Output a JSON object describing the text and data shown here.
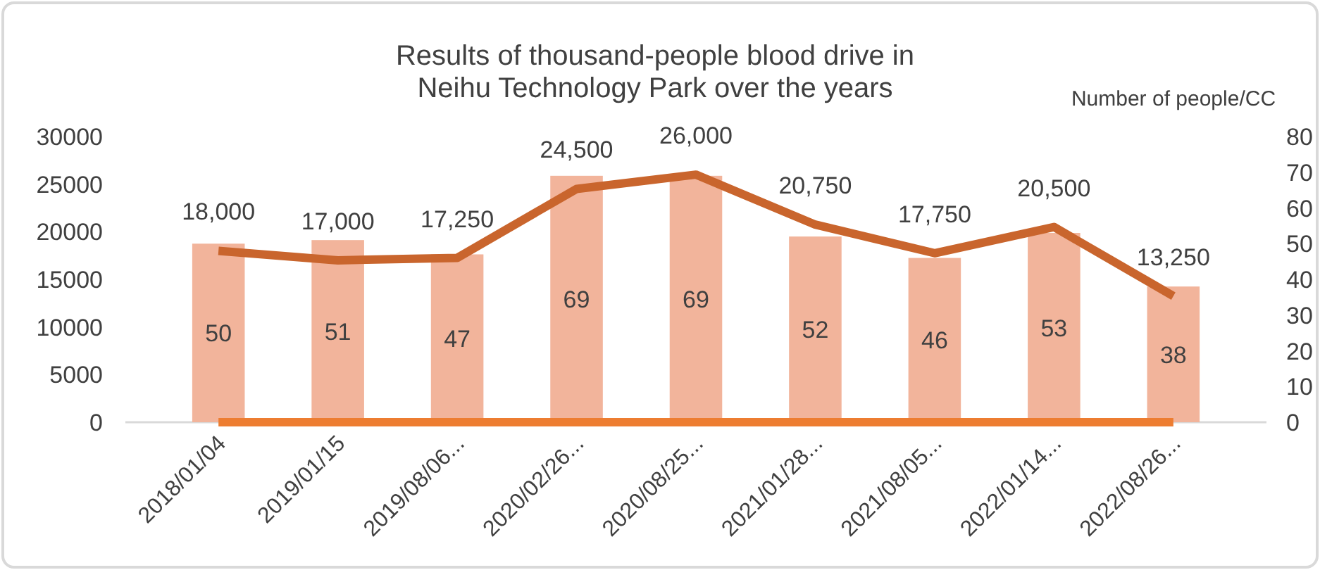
{
  "chart_data": {
    "type": "bar",
    "title": "Results of thousand-people blood drive in\nNeihu Technology Park over the years",
    "y2label": "Number of people/CC",
    "categories": [
      "2018/01/04",
      "2019/01/15",
      "2019/08/06...",
      "2020/02/26...",
      "2020/08/25...",
      "2021/01/28...",
      "2021/08/05...",
      "2022/01/14...",
      "2022/08/26..."
    ],
    "series": [
      {
        "axis": "y2",
        "color": "#f2b49b",
        "values": [
          50,
          51,
          47,
          69,
          69,
          52,
          46,
          53,
          38
        ],
        "value_labels": [
          "50",
          "51",
          "47",
          "69",
          "69",
          "52",
          "46",
          "53",
          "38"
        ]
      },
      {
        "type": "line",
        "color": "#c9652d",
        "values": [
          18000,
          17000,
          17250,
          24500,
          26000,
          20750,
          17750,
          20500,
          13250
        ],
        "value_labels": [
          "18,000",
          "17,000",
          "17,250",
          "24,500",
          "26,000",
          "20,750",
          "17,750",
          "20,500",
          "13,250"
        ]
      },
      {
        "type": "line",
        "color": "#ed7d31",
        "values": [
          0,
          0,
          0,
          0,
          0,
          0,
          0,
          0,
          0
        ]
      }
    ],
    "ylim": [
      0,
      30000
    ],
    "yticks": [
      0,
      5000,
      10000,
      15000,
      20000,
      25000,
      30000
    ],
    "y2lim": [
      0,
      80
    ],
    "y2ticks": [
      0,
      10,
      20,
      30,
      40,
      50,
      60,
      70,
      80
    ],
    "grid": false
  }
}
